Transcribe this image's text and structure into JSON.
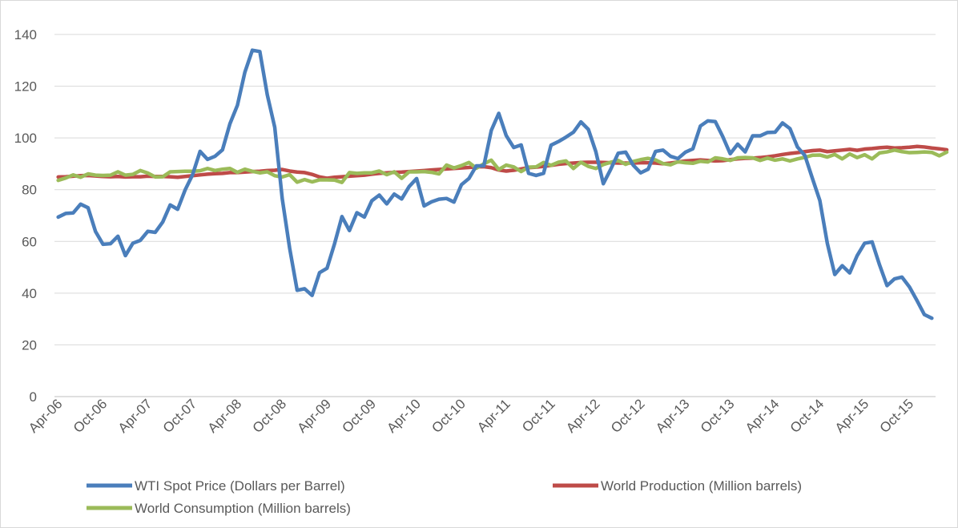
{
  "chart_data": {
    "type": "line",
    "title": "",
    "xlabel": "",
    "ylabel": "",
    "ylim": [
      0,
      140
    ],
    "yticks": [
      0,
      20,
      40,
      60,
      80,
      100,
      120,
      140
    ],
    "grid": "horizontal",
    "legend_position": "bottom",
    "x_tick_labels": [
      "Apr-06",
      "Oct-06",
      "Apr-07",
      "Oct-07",
      "Apr-08",
      "Oct-08",
      "Apr-09",
      "Oct-09",
      "Apr-10",
      "Oct-10",
      "Apr-11",
      "Oct-11",
      "Apr-12",
      "Oct-12",
      "Apr-13",
      "Oct-13",
      "Apr-14",
      "Oct-14",
      "Apr-15",
      "Oct-15"
    ],
    "x_start": "Apr-06",
    "x_end": "Jan-16",
    "series": [
      {
        "name": "WTI Spot Price (Dollars per Barrel)",
        "color": "#4a7ebb",
        "values": [
          69.4,
          70.8,
          71.0,
          74.4,
          73.0,
          63.8,
          58.9,
          59.1,
          62.0,
          54.5,
          59.3,
          60.4,
          63.9,
          63.5,
          67.5,
          74.1,
          72.4,
          79.9,
          85.8,
          94.8,
          91.7,
          92.9,
          95.4,
          105.5,
          112.6,
          125.4,
          133.9,
          133.4,
          116.7,
          104.1,
          76.6,
          57.3,
          41.1,
          41.7,
          39.1,
          47.9,
          49.6,
          59.0,
          69.6,
          64.2,
          71.1,
          69.4,
          75.7,
          77.9,
          74.5,
          78.3,
          76.4,
          81.2,
          84.3,
          73.7,
          75.3,
          76.3,
          76.6,
          75.2,
          81.9,
          84.3,
          89.2,
          89.2,
          102.9,
          109.5,
          100.9,
          96.3,
          97.3,
          86.3,
          85.5,
          86.3,
          97.2,
          98.6,
          100.3,
          102.2,
          106.2,
          103.3,
          94.7,
          82.3,
          87.9,
          94.1,
          94.5,
          89.5,
          86.5,
          87.9,
          94.8,
          95.3,
          92.9,
          92.0,
          94.5,
          95.8,
          104.6,
          106.6,
          106.3,
          100.5,
          93.9,
          97.6,
          94.6,
          100.8,
          100.8,
          102.1,
          102.2,
          105.8,
          103.6,
          96.5,
          93.2,
          84.4,
          75.8,
          59.3,
          47.2,
          50.6,
          47.8,
          54.5,
          59.3,
          59.8,
          50.9,
          42.9,
          45.5,
          46.2,
          42.4,
          37.2,
          31.7,
          30.3
        ]
      },
      {
        "name": "World Production (Million barrels)",
        "color": "#be4b48",
        "values": [
          84.9,
          85.0,
          85.2,
          85.4,
          85.5,
          85.3,
          85.1,
          85.0,
          85.1,
          84.9,
          85.0,
          85.0,
          85.2,
          85.1,
          85.1,
          85.0,
          84.8,
          85.1,
          85.4,
          85.7,
          86.0,
          86.2,
          86.3,
          86.6,
          86.6,
          86.8,
          87.0,
          87.1,
          87.4,
          87.5,
          87.8,
          87.2,
          86.8,
          86.6,
          85.9,
          84.9,
          84.4,
          84.8,
          85.0,
          85.2,
          85.4,
          85.6,
          86.0,
          86.3,
          86.5,
          86.7,
          86.8,
          87.0,
          87.2,
          87.4,
          87.6,
          87.8,
          88.0,
          88.2,
          88.4,
          88.6,
          88.8,
          88.9,
          88.5,
          87.6,
          87.2,
          87.5,
          88.0,
          88.5,
          88.7,
          89.0,
          89.4,
          89.8,
          90.1,
          90.3,
          90.5,
          90.6,
          90.6,
          90.5,
          90.4,
          90.3,
          90.3,
          90.3,
          90.4,
          90.4,
          90.3,
          90.0,
          90.3,
          90.7,
          91.1,
          91.3,
          91.5,
          91.3,
          91.1,
          91.2,
          91.6,
          91.9,
          92.1,
          92.2,
          92.4,
          92.7,
          93.1,
          93.6,
          94.0,
          94.3,
          94.7,
          95.1,
          95.3,
          94.7,
          95.0,
          95.3,
          95.6,
          95.2,
          95.7,
          95.9,
          96.2,
          96.4,
          96.1,
          96.2,
          96.4,
          96.7,
          96.5,
          96.1,
          95.8,
          95.4
        ]
      },
      {
        "name": "World Consumption (Million barrels)",
        "color": "#9bbb59",
        "values": [
          83.6,
          84.5,
          85.7,
          84.8,
          86.1,
          85.6,
          85.5,
          85.6,
          86.9,
          85.6,
          85.9,
          87.4,
          86.4,
          84.9,
          85.0,
          86.9,
          87.0,
          87.1,
          87.1,
          87.3,
          88.2,
          87.4,
          87.9,
          88.2,
          86.7,
          87.9,
          87.1,
          86.5,
          86.9,
          85.4,
          84.9,
          85.8,
          82.9,
          83.9,
          83.0,
          83.8,
          83.8,
          83.7,
          82.8,
          86.6,
          86.3,
          86.5,
          86.5,
          87.2,
          85.8,
          86.9,
          84.4,
          86.9,
          86.9,
          87.0,
          86.7,
          86.1,
          89.5,
          88.4,
          89.3,
          90.5,
          88.3,
          90.0,
          91.4,
          87.8,
          89.5,
          88.8,
          87.0,
          88.7,
          88.8,
          90.5,
          89.4,
          90.6,
          91.1,
          88.2,
          90.6,
          89.0,
          88.2,
          89.7,
          90.6,
          91.3,
          89.8,
          90.9,
          91.6,
          92.1,
          91.5,
          90.1,
          89.6,
          90.8,
          90.4,
          90.2,
          91.0,
          90.7,
          92.3,
          91.9,
          91.3,
          92.3,
          92.4,
          92.3,
          91.3,
          92.2,
          91.4,
          91.9,
          91.1,
          91.9,
          92.5,
          93.3,
          93.4,
          92.6,
          93.6,
          91.9,
          93.8,
          92.4,
          93.5,
          91.9,
          94.2,
          94.6,
          95.3,
          94.7,
          94.3,
          94.4,
          94.6,
          94.4,
          93.1,
          94.5
        ]
      }
    ]
  }
}
